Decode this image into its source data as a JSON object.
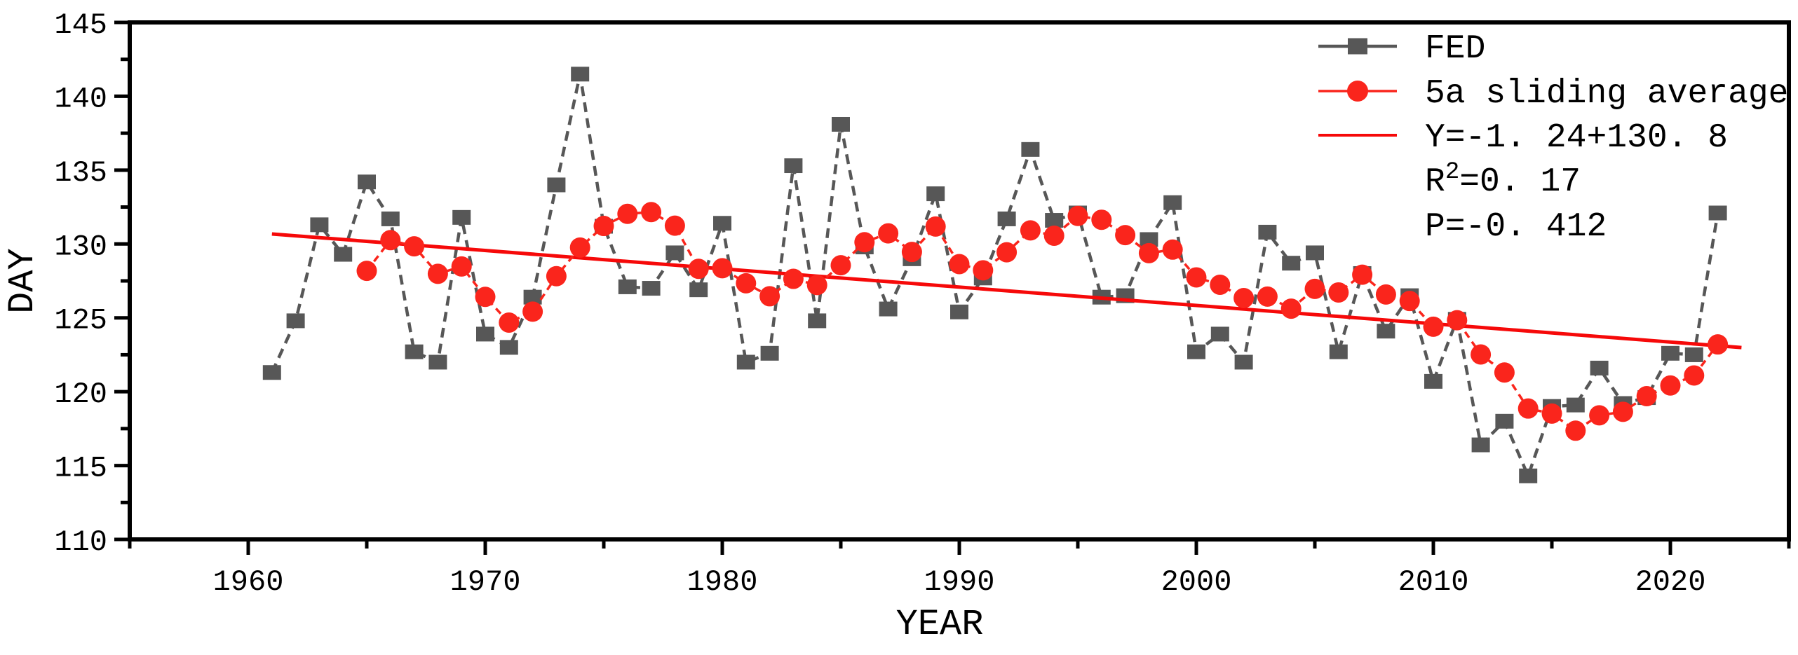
{
  "page": {
    "background": "#ffffff"
  },
  "chart_data": {
    "type": "line",
    "title": "",
    "xlabel": "YEAR",
    "ylabel": "DAY",
    "xlim": [
      1955,
      2025
    ],
    "ylim": [
      110,
      145
    ],
    "x_major_ticks": [
      1960,
      1970,
      1980,
      1990,
      2000,
      2010,
      2020
    ],
    "x_minor_tick_step": 5,
    "y_major_ticks": [
      110,
      115,
      120,
      125,
      130,
      135,
      140,
      145
    ],
    "y_minor_tick_step": 2.5,
    "grid": false,
    "legend_position": "top-right-inside",
    "x": [
      1961,
      1962,
      1963,
      1964,
      1965,
      1966,
      1967,
      1968,
      1969,
      1970,
      1971,
      1972,
      1973,
      1974,
      1975,
      1976,
      1977,
      1978,
      1979,
      1980,
      1981,
      1982,
      1983,
      1984,
      1985,
      1986,
      1987,
      1988,
      1989,
      1990,
      1991,
      1992,
      1993,
      1994,
      1995,
      1996,
      1997,
      1998,
      1999,
      2000,
      2001,
      2002,
      2003,
      2004,
      2005,
      2006,
      2007,
      2008,
      2009,
      2010,
      2011,
      2012,
      2013,
      2014,
      2015,
      2016,
      2017,
      2018,
      2019,
      2020,
      2021,
      2022
    ],
    "series": [
      {
        "name": "FED",
        "marker": "square",
        "line_color": "#575757",
        "marker_color": "#575757",
        "start_year": 1961,
        "values": [
          121.3,
          124.8,
          131.3,
          129.3,
          134.2,
          131.7,
          122.7,
          122.0,
          131.8,
          123.9,
          123.0,
          126.4,
          134.0,
          141.5,
          131.2,
          127.1,
          127.0,
          129.4,
          126.9,
          131.4,
          122.0,
          122.6,
          135.3,
          124.8,
          138.1,
          129.8,
          125.6,
          129.0,
          133.4,
          125.4,
          127.7,
          131.7,
          136.4,
          131.6,
          132.1,
          126.4,
          126.5,
          130.3,
          132.8,
          122.7,
          123.9,
          122.0,
          130.8,
          128.7,
          129.4,
          122.7,
          128.0,
          124.1,
          126.5,
          120.7,
          124.9,
          116.4,
          118.0,
          114.3,
          119.0,
          119.1,
          121.6,
          119.2,
          119.6,
          122.6,
          122.5,
          132.1
        ]
      },
      {
        "name": "5a sliding average",
        "marker": "circle",
        "line_color": "#fa251c",
        "marker_color": "#fa251c",
        "start_year": 1965,
        "values": [
          128.18,
          130.26,
          129.84,
          127.98,
          128.48,
          126.42,
          124.68,
          125.42,
          127.82,
          129.76,
          131.22,
          132.04,
          132.16,
          131.24,
          128.32,
          128.36,
          127.34,
          126.46,
          127.64,
          127.22,
          128.56,
          130.12,
          130.72,
          129.46,
          131.18,
          128.64,
          128.22,
          129.44,
          130.92,
          130.56,
          131.9,
          131.64,
          130.6,
          129.38,
          129.62,
          127.74,
          127.24,
          126.34,
          126.44,
          125.62,
          126.96,
          126.72,
          127.92,
          126.58,
          126.14,
          124.4,
          124.84,
          122.52,
          121.3,
          118.86,
          118.52,
          117.36,
          118.4,
          118.64,
          119.7,
          120.42,
          121.1,
          123.2
        ]
      }
    ],
    "trend_line": {
      "label": "Y=-1. 24+130. 8",
      "color": "#f60909",
      "slope_per_decade": -1.24,
      "value_at_1960": 130.8,
      "year_start": 1961,
      "year_end": 2023
    },
    "legend": [
      {
        "label": "FED",
        "swatch": "line-square"
      },
      {
        "label": "5a sliding average",
        "swatch": "line-circle"
      },
      {
        "label": "Y=-1. 24+130. 8",
        "swatch": "line"
      },
      {
        "label_pre": "R",
        "label_sup": "2",
        "label_post": "=0. 17",
        "swatch": "none"
      },
      {
        "label": "P=-0. 412",
        "swatch": "none"
      }
    ],
    "stats": {
      "r_squared": "0. 17",
      "pearson": "-0. 412"
    },
    "colors": {
      "fed": "#575757",
      "sliding_average": "#fa251c",
      "trend": "#f60909",
      "axis": "#000000"
    }
  }
}
